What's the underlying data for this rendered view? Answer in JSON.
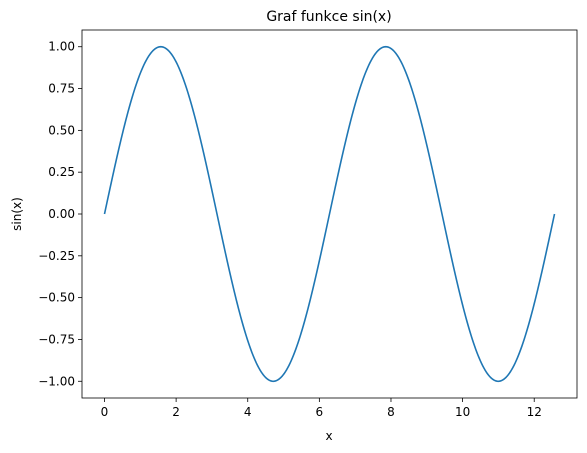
{
  "chart_data": {
    "type": "line",
    "title": "Graf funkce sin(x)",
    "xlabel": "x",
    "ylabel": "sin(x)",
    "xlim": [
      -0.6283,
      13.1947
    ],
    "ylim": [
      -1.1,
      1.1
    ],
    "grid": false,
    "x_ticks": [
      0,
      2,
      4,
      6,
      8,
      10,
      12
    ],
    "x_tick_labels": [
      "0",
      "2",
      "4",
      "6",
      "8",
      "10",
      "12"
    ],
    "y_ticks": [
      -1.0,
      -0.75,
      -0.5,
      -0.25,
      0.0,
      0.25,
      0.5,
      0.75,
      1.0
    ],
    "y_tick_labels": [
      "−1.00",
      "−0.75",
      "−0.50",
      "−0.25",
      "0.00",
      "0.25",
      "0.50",
      "0.75",
      "1.00"
    ],
    "series": [
      {
        "color": "#1f77b4",
        "function": "sin(x)",
        "x_range": [
          0,
          12.5664
        ]
      }
    ]
  }
}
